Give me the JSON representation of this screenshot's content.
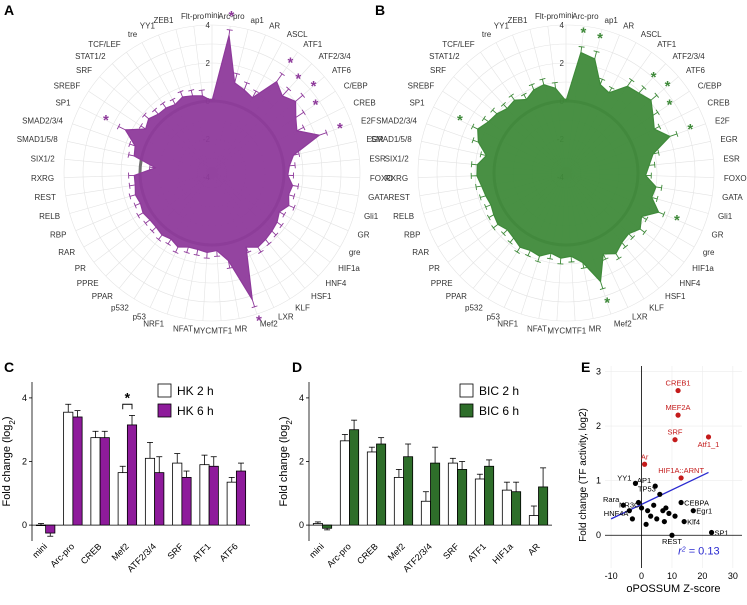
{
  "panel_labels": [
    "A",
    "B",
    "C",
    "D",
    "E"
  ],
  "chart_data": [
    {
      "id": "A",
      "type": "radar",
      "title": "",
      "radial_ticks": [
        "-4",
        "-2",
        "0",
        "2",
        "4"
      ],
      "rlim": [
        -4,
        4
      ],
      "baseline": 0,
      "color": "#8e3a9b",
      "categories": [
        "mini",
        "Arc-pro",
        "ap1",
        "AR",
        "ASCL",
        "ATF1",
        "ATF2/3/4",
        "ATF6",
        "C/EBP",
        "CREB",
        "E2F",
        "EGR",
        "ESR",
        "FOXO",
        "GATA",
        "Gli1",
        "GR",
        "gre",
        "HIF1a",
        "HNF4",
        "HSF1",
        "KLF",
        "LXR",
        "Mef2",
        "MR",
        "MTF1",
        "MYC",
        "NFAT",
        "NRF1",
        "p53",
        "p532",
        "PPAR",
        "PPRE",
        "PR",
        "RAR",
        "RBP",
        "RELB",
        "REST",
        "RXRG",
        "SIX1/2",
        "SMAD1/5/8",
        "SMAD2/3/4",
        "SP1",
        "SREBF",
        "SRF",
        "STAT1/2",
        "TCF/LEF",
        "tre",
        "YY1",
        "ZEB1",
        "Flt-pro"
      ],
      "values": [
        0,
        3.5,
        1.1,
        0.9,
        0.7,
        2.1,
        1.7,
        2.0,
        1.5,
        1.2,
        2.2,
        0.6,
        0.3,
        0.2,
        0.5,
        0.4,
        0.6,
        0.3,
        0.5,
        0.6,
        0.7,
        0.8,
        0.5,
        3.2,
        0.9,
        0.3,
        0.4,
        0.3,
        0.3,
        0.5,
        0.3,
        0.4,
        0.3,
        0.3,
        0.4,
        0.3,
        0.4,
        0.3,
        0.3,
        -0.8,
        0.4,
        0.5,
        1.3,
        0.4,
        0.6,
        0.4,
        0.4,
        0.3,
        0.5,
        0.4,
        0.3
      ],
      "errors": [
        0.1,
        0.3,
        0.5,
        0.4,
        0.4,
        0.5,
        0.5,
        0.5,
        0.5,
        0.4,
        0.4,
        0.3,
        0.3,
        0.3,
        0.3,
        0.3,
        0.3,
        0.3,
        0.3,
        0.3,
        0.3,
        0.3,
        0.3,
        0.4,
        0.4,
        0.3,
        0.3,
        0.3,
        0.3,
        0.3,
        0.3,
        0.3,
        0.3,
        0.3,
        0.3,
        0.3,
        0.3,
        0.3,
        0.3,
        0.3,
        0.3,
        0.3,
        0.4,
        0.3,
        0.3,
        0.3,
        0.3,
        0.3,
        0.3,
        0.3,
        0.3
      ],
      "significant": [
        "Arc-pro",
        "ATF1",
        "ATF2/3/4",
        "ATF6",
        "C/EBP",
        "E2F",
        "Mef2",
        "SP1"
      ],
      "marker": "*"
    },
    {
      "id": "B",
      "type": "radar",
      "title": "",
      "radial_ticks": [
        "-4",
        "-2",
        "0",
        "2",
        "4"
      ],
      "rlim": [
        -4,
        4
      ],
      "baseline": 0,
      "color": "#3f8a3a",
      "categories": [
        "mini",
        "Arc-pro",
        "ap1",
        "AR",
        "ASCL",
        "ATF1",
        "ATF2/3/4",
        "ATF6",
        "C/EBP",
        "CREB",
        "E2F",
        "EGR",
        "ESR",
        "FOXO",
        "GATA",
        "Gli1",
        "GR",
        "gre",
        "HIF1a",
        "HNF4",
        "HSF1",
        "KLF",
        "LXR",
        "Mef2",
        "MR",
        "MTF1",
        "MYC",
        "NFAT",
        "NRF1",
        "p53",
        "p532",
        "PPAR",
        "PPRE",
        "PR",
        "RAR",
        "RBP",
        "RELB",
        "REST",
        "RXRG",
        "SIX1/2",
        "SMAD1/5/8",
        "SMAD2/3/4",
        "SP1",
        "SREBF",
        "SRF",
        "STAT1/2",
        "TCF/LEF",
        "tre",
        "YY1",
        "ZEB1",
        "Flt-pro"
      ],
      "values": [
        0,
        2.6,
        2.4,
        1.2,
        1.0,
        1.8,
        1.9,
        2.1,
        1.7,
        1.4,
        2.0,
        0.9,
        0.6,
        0.4,
        1.0,
        0.9,
        1.5,
        0.8,
        1.1,
        0.8,
        0.9,
        1.2,
        0.9,
        2.2,
        1.0,
        0.6,
        0.7,
        0.5,
        0.8,
        0.7,
        0.8,
        0.6,
        0.5,
        0.7,
        0.6,
        0.5,
        0.6,
        0.7,
        0.9,
        0.9,
        0.5,
        1.1,
        1.4,
        1.1,
        1.0,
        0.8,
        0.9,
        0.6,
        0.9,
        1.0,
        0.7
      ],
      "errors": [
        0.1,
        0.3,
        0.4,
        0.3,
        0.3,
        0.4,
        0.4,
        0.4,
        0.3,
        0.3,
        0.4,
        0.3,
        0.3,
        0.3,
        0.3,
        0.3,
        0.3,
        0.3,
        0.3,
        0.3,
        0.3,
        0.3,
        0.3,
        0.4,
        0.3,
        0.3,
        0.3,
        0.3,
        0.3,
        0.3,
        0.3,
        0.3,
        0.3,
        0.3,
        0.3,
        0.3,
        0.3,
        0.3,
        0.3,
        0.3,
        0.3,
        0.3,
        0.3,
        0.3,
        0.3,
        0.3,
        0.3,
        0.3,
        0.3,
        0.3,
        0.3
      ],
      "significant": [
        "Arc-pro",
        "ap1",
        "ATF2/3/4",
        "ATF6",
        "C/EBP",
        "E2F",
        "GR",
        "Mef2",
        "SP1"
      ],
      "marker": "*"
    },
    {
      "id": "C",
      "type": "bar",
      "ylabel": "Fold change (log2)",
      "xlabel": "",
      "ylim": [
        -0.5,
        4.5
      ],
      "yticks": [
        "0",
        "2",
        "4"
      ],
      "categories": [
        "mini",
        "Arc-pro",
        "CREB",
        "Mef2",
        "ATF2/3/4",
        "SRF",
        "ATF1",
        "ATF6"
      ],
      "series": [
        {
          "name": "HK 2 h",
          "color": "#ffffff",
          "values": [
            0.0,
            3.55,
            2.75,
            1.65,
            2.1,
            1.95,
            1.9,
            1.35
          ],
          "errors": [
            0.05,
            0.25,
            0.2,
            0.2,
            0.5,
            0.3,
            0.3,
            0.15
          ]
        },
        {
          "name": "HK 6 h",
          "color": "#8e1b9b",
          "values": [
            -0.25,
            3.4,
            2.75,
            3.15,
            1.65,
            1.5,
            1.85,
            1.7
          ],
          "errors": [
            0.1,
            0.2,
            0.2,
            0.3,
            0.5,
            0.2,
            0.3,
            0.25
          ]
        }
      ],
      "annotation": {
        "text": "*",
        "between": "Mef2"
      }
    },
    {
      "id": "D",
      "type": "bar",
      "ylabel": "Fold change (log2)",
      "xlabel": "",
      "ylim": [
        -0.5,
        4.5
      ],
      "yticks": [
        "0",
        "2",
        "4"
      ],
      "categories": [
        "mini",
        "Arc-pro",
        "CREB",
        "Mef2",
        "ATF2/3/4",
        "SRF",
        "ATF1",
        "HIF1a",
        "AR"
      ],
      "series": [
        {
          "name": "BIC 2 h",
          "color": "#ffffff",
          "values": [
            0.05,
            2.65,
            2.3,
            1.5,
            0.75,
            1.95,
            1.45,
            1.1,
            0.3
          ],
          "errors": [
            0.05,
            0.2,
            0.15,
            0.25,
            0.3,
            0.15,
            0.15,
            0.25,
            0.3
          ]
        },
        {
          "name": "BIC 6 h",
          "color": "#2e6e2a",
          "values": [
            -0.1,
            3.0,
            2.55,
            2.15,
            1.95,
            1.75,
            1.85,
            1.05,
            1.2
          ],
          "errors": [
            0.05,
            0.3,
            0.2,
            0.4,
            0.5,
            0.25,
            0.2,
            0.3,
            0.6
          ]
        }
      ]
    },
    {
      "id": "E",
      "type": "scatter",
      "xlabel": "oPOSSUM Z-score",
      "ylabel": "Fold change (TF activity, log2)",
      "xlim": [
        -12,
        33
      ],
      "ylim": [
        -0.6,
        3.1
      ],
      "xticks": [
        "-10",
        "0",
        "10",
        "20",
        "30"
      ],
      "yticks": [
        "0",
        "1",
        "2",
        "3"
      ],
      "r2_label": "r",
      "r2_sup": "2",
      "r2_value": " = 0.13",
      "fit_line": {
        "x": [
          -10,
          22
        ],
        "y": [
          0.3,
          1.15
        ],
        "color": "#2a2ad0"
      },
      "highlight_color": "#c41b1b",
      "points": [
        {
          "x": 12.0,
          "y": 2.65,
          "label": "CREB1",
          "red": true
        },
        {
          "x": 12.0,
          "y": 2.2,
          "label": "MEF2A",
          "red": true
        },
        {
          "x": 22.0,
          "y": 1.8,
          "label": "Atf1_1",
          "red": true
        },
        {
          "x": 11.0,
          "y": 1.75,
          "label": "SRF",
          "red": true
        },
        {
          "x": 1.0,
          "y": 1.3,
          "label": "Ar",
          "red": true
        },
        {
          "x": 13.0,
          "y": 1.05,
          "label": "HIF1A::ARNT",
          "red": true
        },
        {
          "x": -2.0,
          "y": 0.95,
          "label": "YY1",
          "red": false
        },
        {
          "x": 4.5,
          "y": 0.9,
          "label": "AP1",
          "red": false
        },
        {
          "x": 6.0,
          "y": 0.75,
          "label": "TP53",
          "red": false
        },
        {
          "x": -6.0,
          "y": 0.55,
          "label": "Rara",
          "red": false
        },
        {
          "x": 2.0,
          "y": 0.45,
          "label": "NR3C1",
          "red": false
        },
        {
          "x": 13.0,
          "y": 0.6,
          "label": "CEBPA",
          "red": false
        },
        {
          "x": 17.0,
          "y": 0.45,
          "label": "Egr1",
          "red": false
        },
        {
          "x": -3.0,
          "y": 0.3,
          "label": "HNF4A",
          "red": false
        },
        {
          "x": 14.0,
          "y": 0.25,
          "label": "Klf4",
          "red": false
        },
        {
          "x": 10.0,
          "y": 0.0,
          "label": "REST",
          "red": false
        },
        {
          "x": 23.0,
          "y": 0.05,
          "label": "SP1",
          "red": false
        },
        {
          "x": -1.0,
          "y": 0.6,
          "label": "",
          "red": false
        },
        {
          "x": 0.0,
          "y": 0.5,
          "label": "",
          "red": false
        },
        {
          "x": 3.0,
          "y": 0.35,
          "label": "",
          "red": false
        },
        {
          "x": 5.0,
          "y": 0.3,
          "label": "",
          "red": false
        },
        {
          "x": 7.0,
          "y": 0.45,
          "label": "",
          "red": false
        },
        {
          "x": 8.0,
          "y": 0.5,
          "label": "",
          "red": false
        },
        {
          "x": 9.0,
          "y": 0.4,
          "label": "",
          "red": false
        },
        {
          "x": 1.5,
          "y": 0.2,
          "label": "",
          "red": false
        },
        {
          "x": -4.0,
          "y": 0.45,
          "label": "",
          "red": false
        },
        {
          "x": 11.0,
          "y": 0.35,
          "label": "",
          "red": false
        },
        {
          "x": 4.0,
          "y": 0.55,
          "label": "",
          "red": false
        },
        {
          "x": 7.5,
          "y": 0.25,
          "label": "",
          "red": false
        }
      ]
    }
  ]
}
